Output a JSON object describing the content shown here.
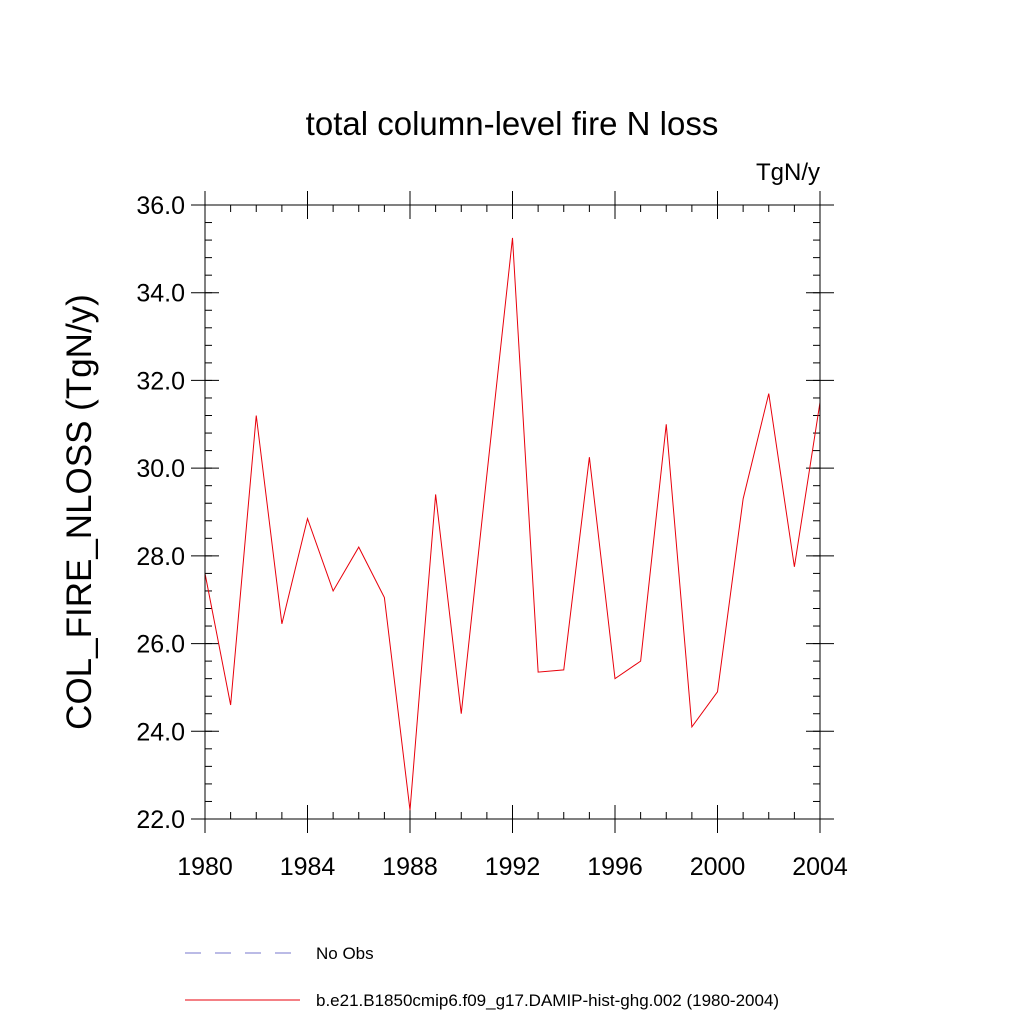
{
  "chart_data": {
    "type": "line",
    "title": "total column-level fire N loss",
    "units": "TgN/y",
    "ylabel": "COL_FIRE_NLOSS  (TgN/y)",
    "xlabel": "",
    "xlim": [
      1980,
      2004
    ],
    "ylim": [
      22.0,
      36.0
    ],
    "x_ticks": [
      1980,
      1984,
      1988,
      1992,
      1996,
      2000,
      2004
    ],
    "x_tick_labels": [
      "1980",
      "1984",
      "1988",
      "1992",
      "1996",
      "2000",
      "2004"
    ],
    "x_minor_step": 1,
    "y_ticks": [
      22.0,
      24.0,
      26.0,
      28.0,
      30.0,
      32.0,
      34.0,
      36.0
    ],
    "y_tick_labels": [
      "22.0",
      "24.0",
      "26.0",
      "28.0",
      "30.0",
      "32.0",
      "34.0",
      "36.0"
    ],
    "y_minor_step": 0.4,
    "grid": false,
    "legend_position": "bottom",
    "series": [
      {
        "name": "b.e21.B1850cmip6.f09_g17.DAMIP-hist-ghg.002 (1980-2004)",
        "color": "#e8000b",
        "style": "solid",
        "x": [
          1980,
          1981,
          1982,
          1983,
          1984,
          1985,
          1986,
          1987,
          1988,
          1989,
          1990,
          1991,
          1992,
          1993,
          1994,
          1995,
          1996,
          1997,
          1998,
          1999,
          2000,
          2001,
          2002,
          2003,
          2004
        ],
        "y": [
          27.6,
          24.6,
          31.2,
          26.45,
          28.85,
          27.2,
          28.2,
          27.05,
          22.2,
          29.4,
          24.4,
          29.85,
          35.25,
          25.35,
          25.4,
          30.25,
          25.2,
          25.6,
          31.0,
          24.1,
          24.9,
          29.3,
          31.7,
          27.75,
          31.5
        ]
      },
      {
        "name": "No Obs",
        "color": "#7777cc",
        "style": "dashed",
        "x": [],
        "y": []
      }
    ]
  }
}
